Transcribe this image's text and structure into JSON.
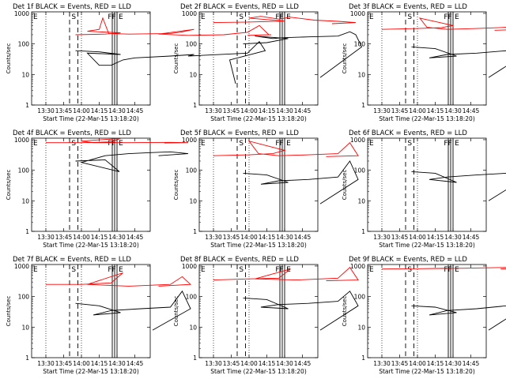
{
  "figure": {
    "xlabel": "Start Time (22-Mar-15 13:18:20)",
    "ylabel": "Counts/sec",
    "x_ticks": [
      "13:30",
      "13:45",
      "14:00",
      "14:15",
      "14:30",
      "14:45"
    ],
    "y_ticks": [
      "1",
      "10",
      "100",
      "1000"
    ],
    "colors": {
      "events": "#000000",
      "lld": "#ff0000",
      "axes": "#000000"
    }
  },
  "chart_data": [
    {
      "type": "line",
      "title": "Det 1f BLACK = Events, RED = LLD",
      "top_labels": [
        "E",
        "S",
        "FF",
        "E"
      ],
      "x_range_min": [
        13.3,
        14.96
      ],
      "ylim": [
        1,
        1000
      ],
      "log_y": true,
      "series": [
        {
          "color": "#ff0000",
          "values": [
            [
              13.55,
              200
            ],
            [
              13.8,
              210
            ],
            [
              13.93,
              230
            ],
            [
              14.05,
              260
            ],
            [
              14.15,
              300
            ],
            [
              14.18,
              700
            ],
            [
              14.23,
              220
            ],
            [
              14.4,
              210
            ],
            [
              14.75,
              220
            ],
            [
              14.83,
              240
            ],
            [
              14.95,
              300
            ],
            [
              15.05,
              210
            ],
            [
              15.3,
              190
            ],
            [
              15.6,
              200
            ],
            [
              15.8,
              240
            ],
            [
              15.9,
              400
            ],
            [
              15.98,
              200
            ],
            [
              16.2,
              190
            ],
            [
              16.4,
              200
            ]
          ]
        },
        {
          "color": "#000000",
          "values": [
            [
              13.55,
              60
            ],
            [
              13.75,
              55
            ],
            [
              13.93,
              45
            ],
            [
              14.05,
              50
            ],
            [
              14.15,
              20
            ],
            [
              14.25,
              20
            ],
            [
              14.35,
              30
            ],
            [
              14.45,
              35
            ],
            [
              14.75,
              40
            ],
            [
              14.95,
              45
            ],
            [
              15.3,
              40
            ],
            [
              15.8,
              50
            ],
            [
              15.9,
              120
            ],
            [
              15.95,
              60
            ],
            [
              16.05,
              30
            ],
            [
              16.1,
              5
            ]
          ]
        }
      ]
    },
    {
      "type": "line",
      "title": "Det 2f BLACK = Events, RED = LLD",
      "top_labels": [
        "E",
        "S",
        "FF",
        "E"
      ],
      "x_range_min": [
        13.3,
        14.96
      ],
      "ylim": [
        1,
        1000
      ],
      "log_y": true,
      "series": [
        {
          "color": "#ff0000",
          "values": [
            [
              13.3,
              500
            ],
            [
              13.6,
              520
            ],
            [
              13.9,
              560
            ],
            [
              14.0,
              700
            ],
            [
              14.1,
              800
            ],
            [
              14.25,
              650
            ],
            [
              14.35,
              750
            ],
            [
              14.55,
              600
            ],
            [
              14.75,
              550
            ],
            [
              14.9,
              500
            ],
            [
              15.1,
              460
            ]
          ]
        },
        {
          "color": "#000000",
          "values": [
            [
              13.55,
              100
            ],
            [
              13.75,
              110
            ],
            [
              13.93,
              150
            ],
            [
              14.05,
              180
            ],
            [
              14.2,
              150
            ],
            [
              14.3,
              160
            ],
            [
              14.5,
              170
            ],
            [
              14.75,
              180
            ],
            [
              14.85,
              250
            ],
            [
              14.9,
              200
            ],
            [
              14.95,
              80
            ],
            [
              15.0,
              8
            ]
          ]
        }
      ]
    },
    {
      "type": "line",
      "title": "Det 3f BLACK = Events, RED = LLD",
      "top_labels": [
        "E",
        "S",
        "FF",
        "E"
      ],
      "x_range_min": [
        13.3,
        14.96
      ],
      "ylim": [
        1,
        1000
      ],
      "log_y": true,
      "series": [
        {
          "color": "#ff0000",
          "values": [
            [
              13.3,
              300
            ],
            [
              13.6,
              320
            ],
            [
              13.8,
              340
            ],
            [
              13.9,
              400
            ],
            [
              14.02,
              700
            ],
            [
              14.08,
              350
            ],
            [
              14.25,
              300
            ],
            [
              14.5,
              320
            ],
            [
              14.75,
              350
            ],
            [
              14.85,
              450
            ],
            [
              14.92,
              300
            ],
            [
              15.05,
              280
            ]
          ]
        },
        {
          "color": "#000000",
          "values": [
            [
              13.55,
              80
            ],
            [
              13.75,
              70
            ],
            [
              13.93,
              40
            ],
            [
              14.1,
              35
            ],
            [
              14.25,
              45
            ],
            [
              14.5,
              50
            ],
            [
              14.75,
              60
            ],
            [
              14.85,
              120
            ],
            [
              14.92,
              50
            ],
            [
              15.0,
              8
            ]
          ]
        }
      ]
    },
    {
      "type": "line",
      "title": "Det 4f BLACK = Events, RED = LLD",
      "top_labels": [
        "E",
        "S",
        "FF",
        "E"
      ],
      "x_range_min": [
        13.3,
        14.96
      ],
      "ylim": [
        1,
        1000
      ],
      "log_y": true,
      "series": [
        {
          "color": "#ff0000",
          "values": [
            [
              13.3,
              800
            ],
            [
              13.6,
              800
            ],
            [
              13.85,
              850
            ],
            [
              13.93,
              1100
            ],
            [
              14.0,
              900
            ],
            [
              14.1,
              800
            ],
            [
              14.4,
              800
            ],
            [
              14.75,
              820
            ],
            [
              14.9,
              800
            ],
            [
              15.1,
              780
            ]
          ]
        },
        {
          "color": "#000000",
          "values": [
            [
              13.55,
              200
            ],
            [
              13.8,
              220
            ],
            [
              13.92,
              90
            ],
            [
              14.0,
              180
            ],
            [
              14.2,
              300
            ],
            [
              14.4,
              350
            ],
            [
              14.6,
              380
            ],
            [
              14.75,
              400
            ],
            [
              14.9,
              350
            ],
            [
              15.05,
              300
            ]
          ]
        }
      ]
    },
    {
      "type": "line",
      "title": "Det 5f BLACK = Events, RED = LLD",
      "top_labels": [
        "E",
        "S",
        "FF",
        "E"
      ],
      "x_range_min": [
        13.3,
        14.96
      ],
      "ylim": [
        1,
        1000
      ],
      "log_y": true,
      "series": [
        {
          "color": "#ff0000",
          "values": [
            [
              13.3,
              300
            ],
            [
              13.6,
              320
            ],
            [
              13.8,
              350
            ],
            [
              13.9,
              450
            ],
            [
              14.0,
              900
            ],
            [
              14.08,
              350
            ],
            [
              14.25,
              300
            ],
            [
              14.5,
              320
            ],
            [
              14.75,
              350
            ],
            [
              14.85,
              800
            ],
            [
              14.92,
              300
            ],
            [
              15.05,
              280
            ]
          ]
        },
        {
          "color": "#000000",
          "values": [
            [
              13.55,
              80
            ],
            [
              13.75,
              70
            ],
            [
              13.93,
              40
            ],
            [
              14.1,
              35
            ],
            [
              14.25,
              45
            ],
            [
              14.5,
              50
            ],
            [
              14.75,
              60
            ],
            [
              14.85,
              200
            ],
            [
              14.92,
              50
            ],
            [
              15.0,
              8
            ]
          ]
        }
      ]
    },
    {
      "type": "line",
      "title": "Det 6f BLACK = Events, RED = LLD",
      "top_labels": [
        "E",
        "S",
        "FF",
        "E"
      ],
      "x_range_min": [
        13.3,
        14.96
      ],
      "ylim": [
        1,
        1000
      ],
      "log_y": true,
      "series": [
        {
          "color": "#000000",
          "values": [
            [
              13.55,
              90
            ],
            [
              13.75,
              80
            ],
            [
              13.93,
              40
            ],
            [
              14.1,
              50
            ],
            [
              14.25,
              60
            ],
            [
              14.5,
              70
            ],
            [
              14.75,
              80
            ],
            [
              14.85,
              250
            ],
            [
              14.92,
              60
            ],
            [
              15.0,
              10
            ]
          ]
        }
      ]
    },
    {
      "type": "line",
      "title": "Det 7f BLACK = Events, RED = LLD",
      "top_labels": [
        "E",
        "S",
        "FF",
        "E"
      ],
      "x_range_min": [
        13.3,
        14.96
      ],
      "ylim": [
        1,
        1000
      ],
      "log_y": true,
      "series": [
        {
          "color": "#ff0000",
          "values": [
            [
              13.3,
              250
            ],
            [
              13.6,
              250
            ],
            [
              13.85,
              280
            ],
            [
              13.95,
              600
            ],
            [
              14.05,
              250
            ],
            [
              14.4,
              220
            ],
            [
              14.75,
              250
            ],
            [
              14.85,
              450
            ],
            [
              14.92,
              250
            ],
            [
              15.05,
              220
            ]
          ]
        },
        {
          "color": "#000000",
          "values": [
            [
              13.55,
              60
            ],
            [
              13.75,
              50
            ],
            [
              13.93,
              30
            ],
            [
              14.1,
              25
            ],
            [
              14.25,
              35
            ],
            [
              14.5,
              40
            ],
            [
              14.75,
              45
            ],
            [
              14.85,
              150
            ],
            [
              14.92,
              40
            ],
            [
              15.0,
              8
            ]
          ]
        }
      ]
    },
    {
      "type": "line",
      "title": "Det 8f BLACK = Events, RED = LLD",
      "top_labels": [
        "E",
        "S",
        "FF",
        "E"
      ],
      "x_range_min": [
        13.3,
        14.96
      ],
      "ylim": [
        1,
        1000
      ],
      "log_y": true,
      "series": [
        {
          "color": "#ff0000",
          "values": [
            [
              13.3,
              350
            ],
            [
              13.6,
              380
            ],
            [
              13.85,
              400
            ],
            [
              13.95,
              800
            ],
            [
              14.05,
              380
            ],
            [
              14.4,
              350
            ],
            [
              14.75,
              400
            ],
            [
              14.85,
              900
            ],
            [
              14.92,
              350
            ],
            [
              15.05,
              330
            ]
          ]
        },
        {
          "color": "#000000",
          "values": [
            [
              13.55,
              90
            ],
            [
              13.75,
              80
            ],
            [
              13.93,
              40
            ],
            [
              14.1,
              45
            ],
            [
              14.25,
              55
            ],
            [
              14.5,
              60
            ],
            [
              14.75,
              70
            ],
            [
              14.85,
              150
            ],
            [
              14.92,
              50
            ],
            [
              15.0,
              8
            ]
          ]
        }
      ]
    },
    {
      "type": "line",
      "title": "Det 9f BLACK = Events, RED = LLD",
      "top_labels": [
        "E",
        "S",
        "FF",
        "E"
      ],
      "x_range_min": [
        13.3,
        14.96
      ],
      "ylim": [
        1,
        1000
      ],
      "log_y": true,
      "series": [
        {
          "color": "#ff0000",
          "values": [
            [
              13.3,
              800
            ],
            [
              13.6,
              820
            ],
            [
              13.85,
              850
            ],
            [
              14.0,
              820
            ],
            [
              14.4,
              850
            ],
            [
              14.75,
              900
            ],
            [
              14.9,
              850
            ],
            [
              15.1,
              800
            ]
          ]
        },
        {
          "color": "#000000",
          "values": [
            [
              13.55,
              50
            ],
            [
              13.75,
              45
            ],
            [
              13.93,
              30
            ],
            [
              14.1,
              25
            ],
            [
              14.25,
              35
            ],
            [
              14.5,
              40
            ],
            [
              14.75,
              50
            ],
            [
              14.85,
              200
            ],
            [
              14.92,
              50
            ],
            [
              15.0,
              8
            ]
          ]
        }
      ]
    }
  ]
}
